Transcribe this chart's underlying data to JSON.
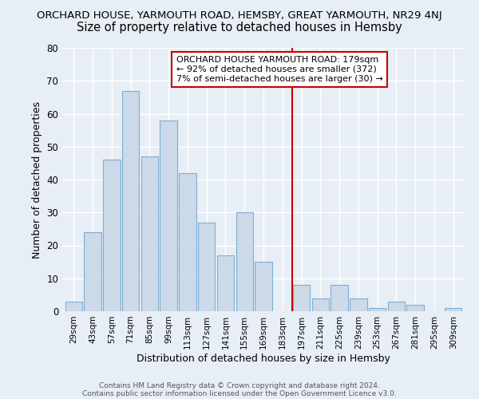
{
  "title": "ORCHARD HOUSE, YARMOUTH ROAD, HEMSBY, GREAT YARMOUTH, NR29 4NJ",
  "subtitle": "Size of property relative to detached houses in Hemsby",
  "xlabel": "Distribution of detached houses by size in Hemsby",
  "ylabel": "Number of detached properties",
  "bar_labels": [
    "29sqm",
    "43sqm",
    "57sqm",
    "71sqm",
    "85sqm",
    "99sqm",
    "113sqm",
    "127sqm",
    "141sqm",
    "155sqm",
    "169sqm",
    "183sqm",
    "197sqm",
    "211sqm",
    "225sqm",
    "239sqm",
    "253sqm",
    "267sqm",
    "281sqm",
    "295sqm",
    "309sqm"
  ],
  "bar_values": [
    3,
    24,
    46,
    67,
    47,
    58,
    42,
    27,
    17,
    30,
    15,
    0,
    8,
    4,
    8,
    4,
    1,
    3,
    2,
    0,
    1
  ],
  "bar_color": "#ccd9e8",
  "bar_edge_color": "#7bafd4",
  "vline_x": 11.5,
  "vline_color": "#cc0000",
  "annotation_text": "ORCHARD HOUSE YARMOUTH ROAD: 179sqm\n← 92% of detached houses are smaller (372)\n7% of semi-detached houses are larger (30) →",
  "annotation_box_facecolor": "#ffffff",
  "annotation_box_edgecolor": "#cc0000",
  "ylim": [
    0,
    80
  ],
  "yticks": [
    0,
    10,
    20,
    30,
    40,
    50,
    60,
    70,
    80
  ],
  "footer1": "Contains HM Land Registry data © Crown copyright and database right 2024.",
  "footer2": "Contains public sector information licensed under the Open Government Licence v3.0.",
  "background_color": "#e8eef5",
  "grid_color": "#ffffff",
  "title_fontsize": 9.5,
  "subtitle_fontsize": 10.5,
  "annotation_fontsize": 8
}
